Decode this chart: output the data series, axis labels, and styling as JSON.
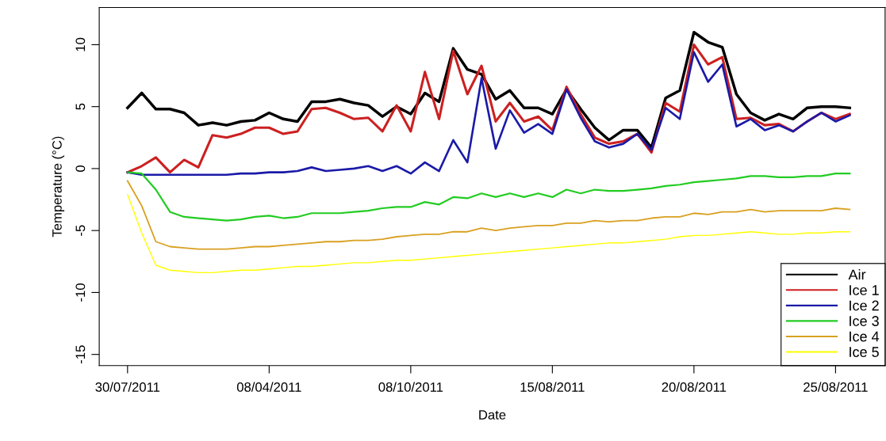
{
  "chart_data": {
    "type": "line",
    "xlabel": "Date",
    "ylabel": "Temperature (°C)",
    "categories": [
      "30/07/2011",
      null,
      null,
      null,
      null,
      null,
      null,
      null,
      null,
      null,
      "08/04/2011",
      null,
      null,
      null,
      null,
      null,
      null,
      null,
      null,
      null,
      "08/10/2011",
      null,
      null,
      null,
      null,
      null,
      null,
      null,
      null,
      null,
      "15/08/2011",
      null,
      null,
      null,
      null,
      null,
      null,
      null,
      null,
      null,
      "20/08/2011",
      null,
      null,
      null,
      null,
      null,
      null,
      null,
      null,
      null,
      "25/08/2011",
      null
    ],
    "ylim": [
      -15.9,
      13.0
    ],
    "yticks": [
      -15,
      -10,
      -5,
      0,
      5,
      10
    ],
    "grid": false,
    "legend": "bottom right",
    "marker": "none",
    "line_style": "solid",
    "series": [
      {
        "name": "Air",
        "color": "#000000",
        "values": [
          4.9,
          6.1,
          4.8,
          4.8,
          4.5,
          3.5,
          3.7,
          3.5,
          3.8,
          3.9,
          4.5,
          4.0,
          3.8,
          5.4,
          5.4,
          5.6,
          5.3,
          5.1,
          4.2,
          5.0,
          4.4,
          6.1,
          5.4,
          9.7,
          8.0,
          7.6,
          5.6,
          6.3,
          4.9,
          4.9,
          4.4,
          6.4,
          4.8,
          3.3,
          2.3,
          3.1,
          3.1,
          1.7,
          5.7,
          6.3,
          11.0,
          10.2,
          9.8,
          6.0,
          4.5,
          3.9,
          4.4,
          4.0,
          4.9,
          5.0,
          5.0,
          4.9
        ]
      },
      {
        "name": "Ice 1",
        "color": "#cc2020",
        "values": [
          -0.3,
          0.2,
          0.9,
          -0.3,
          0.7,
          0.1,
          2.7,
          2.5,
          2.8,
          3.3,
          3.3,
          2.8,
          3.0,
          4.8,
          4.9,
          4.5,
          4.0,
          4.1,
          3.0,
          5.1,
          3.0,
          7.8,
          4.0,
          9.5,
          6.0,
          8.3,
          3.8,
          5.3,
          3.8,
          4.2,
          3.1,
          6.6,
          4.4,
          2.5,
          2.0,
          2.2,
          2.8,
          1.3,
          5.3,
          4.6,
          10.0,
          8.4,
          9.0,
          4.0,
          4.1,
          3.5,
          3.6,
          3.0,
          3.8,
          4.5,
          4.0,
          4.4
        ]
      },
      {
        "name": "Ice 2",
        "color": "#1a1aa8",
        "values": [
          -0.3,
          -0.5,
          -0.5,
          -0.5,
          -0.5,
          -0.5,
          -0.5,
          -0.5,
          -0.4,
          -0.4,
          -0.3,
          -0.3,
          -0.2,
          0.1,
          -0.2,
          -0.1,
          0.0,
          0.2,
          -0.2,
          0.2,
          -0.4,
          0.5,
          -0.2,
          2.3,
          0.5,
          7.3,
          1.6,
          4.7,
          2.9,
          3.6,
          2.8,
          6.4,
          4.1,
          2.2,
          1.7,
          2.0,
          2.8,
          1.5,
          4.9,
          4.0,
          9.4,
          7.0,
          8.4,
          3.4,
          4.0,
          3.1,
          3.5,
          3.0,
          3.8,
          4.5,
          3.8,
          4.3
        ]
      },
      {
        "name": "Ice 3",
        "color": "#22cc22",
        "values": [
          -0.3,
          -0.4,
          -1.7,
          -3.5,
          -3.9,
          -4.0,
          -4.1,
          -4.2,
          -4.1,
          -3.9,
          -3.8,
          -4.0,
          -3.9,
          -3.6,
          -3.6,
          -3.6,
          -3.5,
          -3.4,
          -3.2,
          -3.1,
          -3.1,
          -2.7,
          -2.9,
          -2.3,
          -2.4,
          -2.0,
          -2.3,
          -2.0,
          -2.3,
          -2.0,
          -2.3,
          -1.7,
          -2.0,
          -1.7,
          -1.8,
          -1.8,
          -1.7,
          -1.6,
          -1.4,
          -1.3,
          -1.1,
          -1.0,
          -0.9,
          -0.8,
          -0.6,
          -0.6,
          -0.7,
          -0.7,
          -0.6,
          -0.6,
          -0.4,
          -0.4
        ]
      },
      {
        "name": "Ice 4",
        "color": "#d9a020",
        "values": [
          -1.0,
          -3.0,
          -5.9,
          -6.3,
          -6.4,
          -6.5,
          -6.5,
          -6.5,
          -6.4,
          -6.3,
          -6.3,
          -6.2,
          -6.1,
          -6.0,
          -5.9,
          -5.9,
          -5.8,
          -5.8,
          -5.7,
          -5.5,
          -5.4,
          -5.3,
          -5.3,
          -5.1,
          -5.1,
          -4.8,
          -5.0,
          -4.8,
          -4.7,
          -4.6,
          -4.6,
          -4.4,
          -4.4,
          -4.2,
          -4.3,
          -4.2,
          -4.2,
          -4.0,
          -3.9,
          -3.9,
          -3.6,
          -3.7,
          -3.5,
          -3.5,
          -3.3,
          -3.5,
          -3.4,
          -3.4,
          -3.4,
          -3.4,
          -3.2,
          -3.3
        ]
      },
      {
        "name": "Ice 5",
        "color": "#ffff00",
        "values": [
          -2.1,
          -5.2,
          -7.8,
          -8.2,
          -8.3,
          -8.4,
          -8.4,
          -8.3,
          -8.2,
          -8.2,
          -8.1,
          -8.0,
          -7.9,
          -7.9,
          -7.8,
          -7.7,
          -7.6,
          -7.6,
          -7.5,
          -7.4,
          -7.4,
          -7.3,
          -7.2,
          -7.1,
          -7.0,
          -6.9,
          -6.8,
          -6.7,
          -6.6,
          -6.5,
          -6.4,
          -6.3,
          -6.2,
          -6.1,
          -6.0,
          -6.0,
          -5.9,
          -5.8,
          -5.7,
          -5.5,
          -5.4,
          -5.4,
          -5.3,
          -5.2,
          -5.1,
          -5.2,
          -5.3,
          -5.3,
          -5.2,
          -5.2,
          -5.1,
          -5.1
        ]
      }
    ]
  }
}
